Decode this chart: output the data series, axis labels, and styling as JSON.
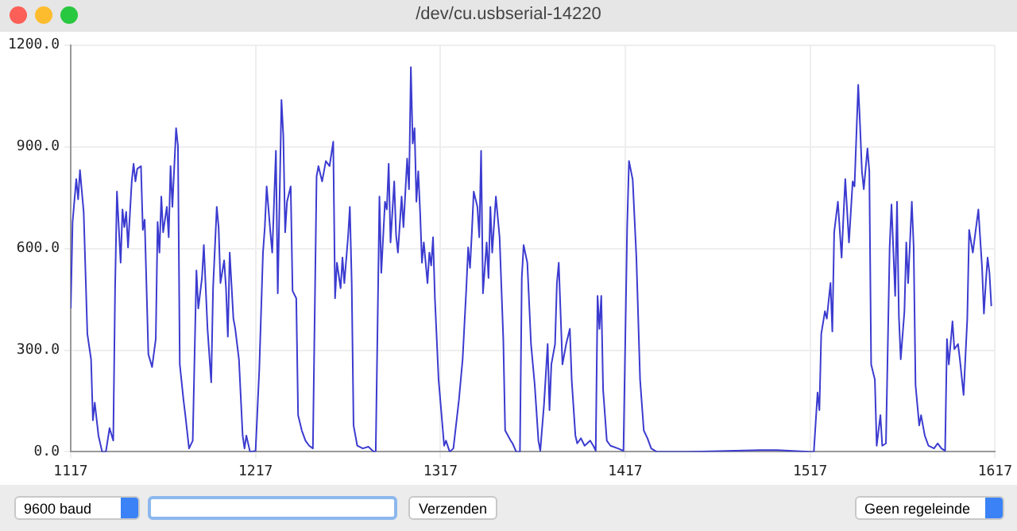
{
  "chart_data": {
    "type": "line",
    "title": "/dev/cu.usbserial-14220",
    "annotations": [
      "9600 baud",
      "Verzenden",
      "Geen regeleinde"
    ],
    "xlim": [
      1117,
      1617
    ],
    "xticks": [
      1117,
      1217,
      1317,
      1417,
      1517,
      1617
    ],
    "ylim": [
      0,
      1200
    ],
    "yticks": [
      {
        "value": 0,
        "label": "0.0"
      },
      {
        "value": 300,
        "label": "300.0"
      },
      {
        "value": 600,
        "label": "600.0"
      },
      {
        "value": 900,
        "label": "900.0"
      },
      {
        "value": 1200,
        "label": "1200.0"
      }
    ],
    "grid": true,
    "series": [
      {
        "color": "#3b3bd0",
        "x": [
          1117,
          1118,
          1120,
          1121,
          1122,
          1124,
          1126,
          1128,
          1129,
          1130,
          1132,
          1134,
          1136,
          1138,
          1140,
          1141,
          1142,
          1144,
          1145,
          1146,
          1147,
          1148,
          1150,
          1151,
          1152,
          1153,
          1155,
          1156,
          1157,
          1159,
          1161,
          1163,
          1164,
          1165,
          1166,
          1167,
          1169,
          1170,
          1171,
          1172,
          1174,
          1175,
          1176,
          1178,
          1179,
          1181,
          1183,
          1185,
          1186,
          1188,
          1189,
          1191,
          1193,
          1194,
          1196,
          1197,
          1198,
          1200,
          1201,
          1202,
          1203,
          1205,
          1206,
          1208,
          1210,
          1211,
          1212,
          1214,
          1217,
          1219,
          1221,
          1222,
          1223,
          1225,
          1226,
          1228,
          1229,
          1231,
          1232,
          1233,
          1234,
          1236,
          1237,
          1239,
          1240,
          1242,
          1244,
          1246,
          1248,
          1250,
          1251,
          1253,
          1255,
          1257,
          1259,
          1260,
          1261,
          1263,
          1264,
          1265,
          1267,
          1268,
          1269,
          1270,
          1272,
          1275,
          1278,
          1281,
          1282,
          1284,
          1285,
          1287,
          1288,
          1289,
          1290,
          1292,
          1293,
          1294,
          1296,
          1297,
          1299,
          1300,
          1301,
          1302,
          1303,
          1304,
          1305,
          1306,
          1307,
          1308,
          1310,
          1311,
          1312,
          1313,
          1314,
          1316,
          1319,
          1320,
          1322,
          1324,
          1327,
          1329,
          1331,
          1332,
          1333,
          1334,
          1335,
          1337,
          1338,
          1339,
          1340,
          1342,
          1343,
          1344,
          1345,
          1347,
          1349,
          1351,
          1352,
          1355,
          1356,
          1358,
          1360,
          1361,
          1362,
          1364,
          1366,
          1368,
          1370,
          1371,
          1373,
          1375,
          1376,
          1377,
          1379,
          1380,
          1381,
          1383,
          1385,
          1387,
          1388,
          1390,
          1391,
          1393,
          1395,
          1398,
          1400,
          1401,
          1402,
          1403,
          1404,
          1405,
          1407,
          1409,
          1413,
          1416,
          1418,
          1419,
          1421,
          1423,
          1425,
          1427,
          1429,
          1431,
          1434,
          1450,
          1490,
          1499,
          1517,
          1519,
          1521,
          1522,
          1523,
          1525,
          1526,
          1528,
          1529,
          1530,
          1532,
          1534,
          1535,
          1536,
          1538,
          1540,
          1541,
          1543,
          1544,
          1545,
          1546,
          1548,
          1549,
          1550,
          1552,
          1553,
          1555,
          1556,
          1558,
          1560,
          1561,
          1563,
          1564,
          1565,
          1566,
          1568,
          1569,
          1570,
          1572,
          1573,
          1574,
          1576,
          1577,
          1579,
          1581,
          1584,
          1586,
          1588,
          1590,
          1591,
          1592,
          1594,
          1595,
          1597,
          1598,
          1600,
          1602,
          1603,
          1605,
          1608,
          1610,
          1611,
          1612,
          1613,
          1614,
          1615
        ],
        "values": [
          423,
          678,
          805,
          745,
          831,
          708,
          348,
          273,
          93,
          145,
          48,
          0,
          0,
          70,
          33,
          483,
          768,
          558,
          715,
          663,
          708,
          603,
          798,
          850,
          798,
          835,
          843,
          655,
          685,
          288,
          250,
          333,
          678,
          588,
          753,
          648,
          723,
          633,
          843,
          723,
          955,
          903,
          258,
          153,
          108,
          10,
          33,
          535,
          423,
          513,
          610,
          363,
          205,
          483,
          723,
          663,
          498,
          565,
          483,
          340,
          588,
          393,
          363,
          273,
          48,
          10,
          48,
          0,
          3,
          243,
          588,
          663,
          783,
          648,
          588,
          888,
          468,
          1038,
          933,
          648,
          738,
          783,
          475,
          453,
          108,
          63,
          33,
          18,
          10,
          813,
          843,
          798,
          858,
          843,
          915,
          453,
          558,
          483,
          573,
          498,
          633,
          723,
          498,
          78,
          18,
          10,
          15,
          0,
          3,
          753,
          528,
          738,
          715,
          850,
          618,
          798,
          640,
          588,
          753,
          663,
          865,
          775,
          1135,
          910,
          955,
          738,
          828,
          708,
          558,
          618,
          498,
          588,
          550,
          633,
          453,
          213,
          18,
          33,
          0,
          10,
          153,
          273,
          483,
          603,
          543,
          648,
          768,
          723,
          633,
          888,
          468,
          618,
          513,
          723,
          588,
          753,
          633,
          333,
          63,
          33,
          25,
          0,
          0,
          513,
          610,
          558,
          318,
          198,
          33,
          3,
          138,
          318,
          123,
          258,
          318,
          498,
          558,
          258,
          318,
          363,
          213,
          48,
          25,
          40,
          18,
          33,
          15,
          3,
          460,
          363,
          460,
          183,
          33,
          18,
          10,
          3,
          663,
          858,
          803,
          573,
          213,
          63,
          40,
          10,
          0,
          0,
          5,
          5,
          0,
          0,
          175,
          123,
          348,
          415,
          393,
          498,
          355,
          648,
          738,
          573,
          693,
          805,
          618,
          798,
          783,
          1083,
          963,
          828,
          775,
          895,
          828,
          258,
          213,
          18,
          108,
          18,
          25,
          603,
          730,
          460,
          738,
          400,
          273,
          415,
          618,
          498,
          738,
          603,
          198,
          78,
          108,
          48,
          18,
          10,
          25,
          10,
          3,
          333,
          258,
          385,
          303,
          318,
          273,
          168,
          393,
          655,
          588,
          715,
          543,
          408,
          498,
          573,
          528,
          430
        ]
      }
    ]
  }
}
